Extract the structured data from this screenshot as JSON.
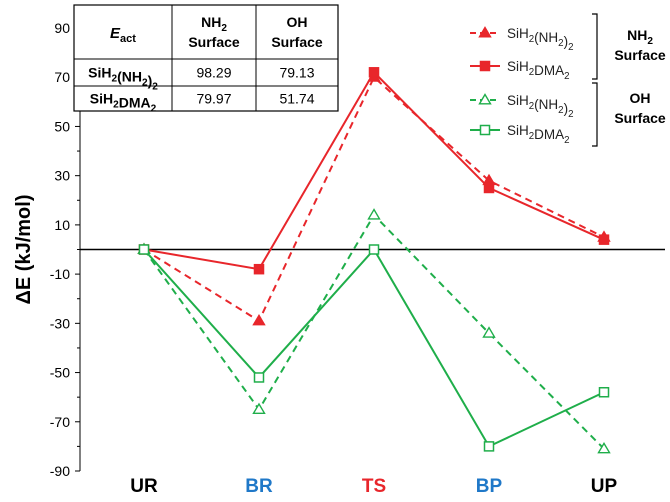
{
  "chart_data": {
    "type": "line",
    "ylabel": "ΔE (kJ/mol)",
    "ylim": [
      -90,
      90
    ],
    "yticks": [
      -90,
      -70,
      -50,
      -30,
      -10,
      10,
      30,
      50,
      70,
      90
    ],
    "categories": [
      "UR",
      "BR",
      "TS",
      "BP",
      "UP"
    ],
    "category_colors": [
      "#000000",
      "#1f78c8",
      "#e8262b",
      "#1f78c8",
      "#000000"
    ],
    "zero_line": true,
    "grid": false,
    "legend_position": "top-right",
    "series": [
      {
        "name": "SiH2(NH2)2",
        "group": "NH2 Surface",
        "values": [
          0,
          -29,
          70,
          28,
          5
        ],
        "color": "#e8262b",
        "dash": true,
        "marker": "triangle-filled"
      },
      {
        "name": "SiH2DMA2",
        "group": "NH2 Surface",
        "values": [
          0,
          -8,
          72,
          25,
          4
        ],
        "color": "#e8262b",
        "dash": false,
        "marker": "square-filled"
      },
      {
        "name": "SiH2(NH2)2",
        "group": "OH Surface",
        "values": [
          0,
          -65,
          14,
          -34,
          -81
        ],
        "color": "#1fae4a",
        "dash": true,
        "marker": "triangle-open"
      },
      {
        "name": "SiH2DMA2",
        "group": "OH Surface",
        "values": [
          0,
          -52,
          0,
          -80,
          -58
        ],
        "color": "#1fae4a",
        "dash": false,
        "marker": "square-open"
      }
    ],
    "legend_groups": [
      {
        "label_line1": "NH2",
        "label_line2": "Surface"
      },
      {
        "label_line1": "OH",
        "label_line2": "Surface"
      }
    ],
    "inset_table": {
      "header": {
        "corner_main": "E",
        "corner_sub": "act",
        "col1_line1": "NH2",
        "col1_line2": "Surface",
        "col2_line1": "OH",
        "col2_line2": "Surface"
      },
      "rows": [
        {
          "label": "SiH2(NH2)2",
          "values": [
            "98.29",
            "79.13"
          ]
        },
        {
          "label": "SiH2DMA2",
          "values": [
            "79.97",
            "51.74"
          ]
        }
      ]
    }
  }
}
